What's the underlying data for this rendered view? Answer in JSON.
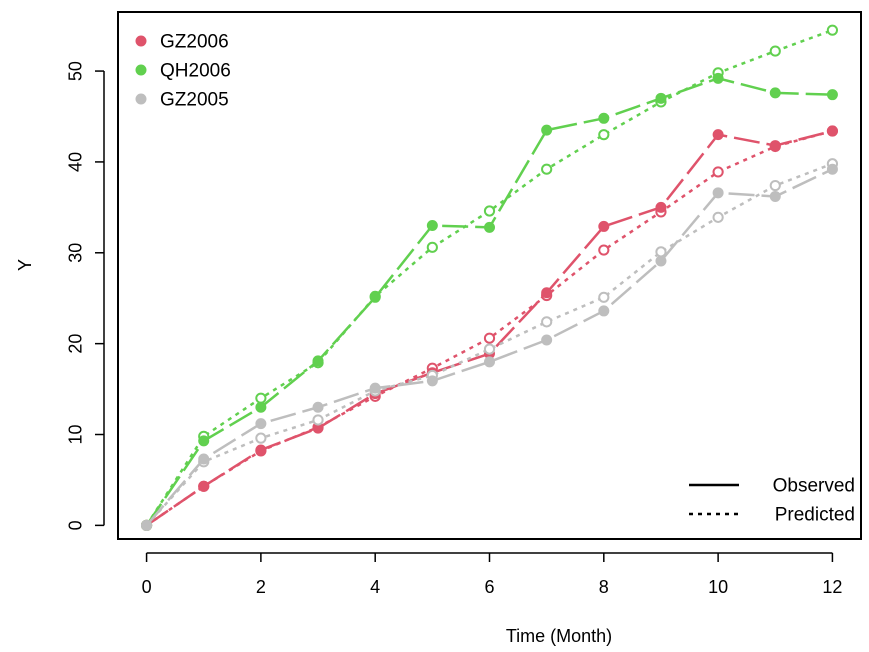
{
  "chart_data": {
    "type": "line",
    "title": "",
    "xlabel": "Time (Month)",
    "ylabel": "Y",
    "xlim": [
      -0.5,
      12.5
    ],
    "ylim": [
      -1.5,
      56.5
    ],
    "xticks": [
      0,
      2,
      4,
      6,
      8,
      10,
      12
    ],
    "xtick_labels": [
      "0",
      "2",
      "4",
      "6",
      "8",
      "10",
      "12"
    ],
    "yticks": [
      0,
      10,
      20,
      30,
      40,
      50
    ],
    "ytick_labels": [
      "0",
      "10",
      "20",
      "30",
      "40",
      "50"
    ],
    "grid": false,
    "legend_series_position": "top-left",
    "legend_linetype_position": "bottom-right",
    "linetype_legend": [
      {
        "label": "Observed",
        "style": "solid"
      },
      {
        "label": "Predicted",
        "style": "dotted"
      }
    ],
    "series": [
      {
        "name": "GZ2006",
        "color": "#DF536B",
        "x": [
          0,
          1,
          2,
          3,
          4,
          5,
          6,
          7,
          8,
          9,
          10,
          11,
          12
        ],
        "observed": [
          0,
          4.3,
          8.3,
          10.7,
          14.5,
          16.8,
          18.9,
          25.6,
          32.9,
          35.0,
          43.0,
          41.8,
          43.4
        ],
        "predicted": [
          0,
          4.3,
          8.2,
          10.8,
          14.2,
          17.3,
          20.6,
          25.3,
          30.3,
          34.5,
          38.9,
          41.7,
          43.4
        ]
      },
      {
        "name": "QH2006",
        "color": "#61D04F",
        "x": [
          0,
          1,
          2,
          3,
          4,
          5,
          6,
          7,
          8,
          9,
          10,
          11,
          12
        ],
        "observed": [
          0,
          9.3,
          13.0,
          18.1,
          25.1,
          33.0,
          32.8,
          43.5,
          44.8,
          47.0,
          49.2,
          47.6,
          47.4
        ],
        "predicted": [
          0,
          9.8,
          14.0,
          17.9,
          25.2,
          30.6,
          34.6,
          39.2,
          43.0,
          46.6,
          49.8,
          52.2,
          54.5
        ]
      },
      {
        "name": "GZ2005",
        "color": "#BEBEBE",
        "x": [
          0,
          1,
          2,
          3,
          4,
          5,
          6,
          7,
          8,
          9,
          10,
          11,
          12
        ],
        "observed": [
          0,
          7.3,
          11.2,
          13.0,
          15.1,
          15.9,
          18.0,
          20.4,
          23.6,
          29.1,
          36.6,
          36.2,
          39.2
        ],
        "predicted": [
          0,
          7.0,
          9.6,
          11.6,
          14.8,
          16.5,
          19.4,
          22.4,
          25.1,
          30.1,
          33.9,
          37.4,
          39.8
        ]
      }
    ]
  }
}
